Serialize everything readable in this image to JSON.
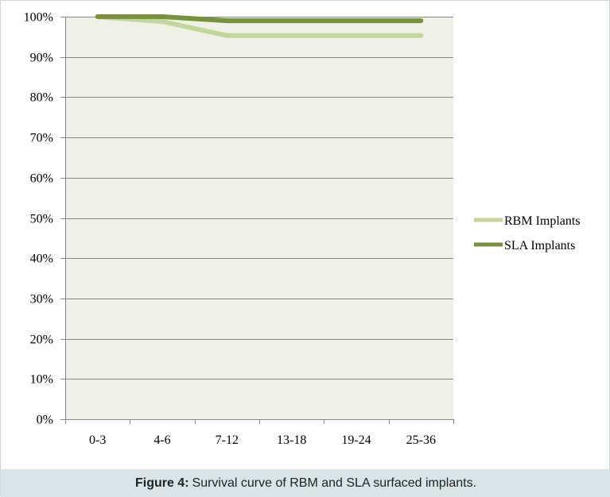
{
  "chart_data": {
    "type": "line",
    "categories": [
      "0-3",
      "4-6",
      "7-12",
      "13-18",
      "19-24",
      "25-36"
    ],
    "ylim": [
      0,
      100
    ],
    "yticks": [
      "0%",
      "10%",
      "20%",
      "30%",
      "40%",
      "50%",
      "60%",
      "70%",
      "80%",
      "90%",
      "100%"
    ],
    "ytick_values": [
      0,
      10,
      20,
      30,
      40,
      50,
      60,
      70,
      80,
      90,
      100
    ],
    "grid": "horizontal",
    "legend": "right",
    "series": [
      {
        "name": "RBM Implants",
        "values": [
          100,
          98.8,
          95.3,
          95.3,
          95.3,
          95.3
        ],
        "color": "#c3d69b"
      },
      {
        "name": "SLA Implants",
        "values": [
          100,
          100,
          99.0,
          99.0,
          99.0,
          99.0
        ],
        "color": "#76923c"
      }
    ],
    "plot_background": "#eef1e6"
  },
  "caption": {
    "label": "Figure 4:",
    "text": "Survival curve of RBM and SLA surfaced implants."
  }
}
